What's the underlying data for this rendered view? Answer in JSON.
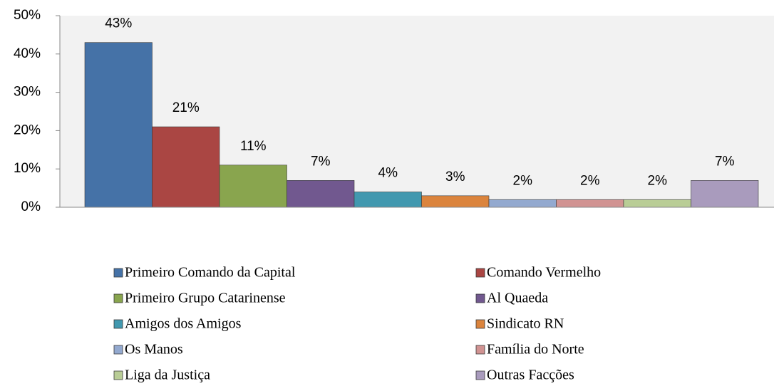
{
  "chart_data": {
    "type": "bar",
    "ylim": [
      0,
      50
    ],
    "yticks": [
      {
        "value": 0,
        "label": "0%"
      },
      {
        "value": 10,
        "label": "10%"
      },
      {
        "value": 20,
        "label": "20%"
      },
      {
        "value": 30,
        "label": "30%"
      },
      {
        "value": 40,
        "label": "40%"
      },
      {
        "value": 50,
        "label": "50%"
      }
    ],
    "series": [
      {
        "name": "Primeiro Comando da Capital",
        "color": "#4572a7",
        "values": [
          43
        ],
        "value_labels": [
          "43%"
        ]
      },
      {
        "name": "Comando Vermelho",
        "color": "#aa4643",
        "values": [
          21
        ],
        "value_labels": [
          "21%"
        ]
      },
      {
        "name": "Primeiro Grupo Catarinense",
        "color": "#89a54e",
        "values": [
          11
        ],
        "value_labels": [
          "11%"
        ]
      },
      {
        "name": "Al Quaeda",
        "color": "#71588f",
        "values": [
          7
        ],
        "value_labels": [
          "7%"
        ]
      },
      {
        "name": "Amigos dos Amigos",
        "color": "#4198af",
        "values": [
          4
        ],
        "value_labels": [
          "4%"
        ]
      },
      {
        "name": "Sindicato RN",
        "color": "#db843d",
        "values": [
          3
        ],
        "value_labels": [
          "3%"
        ]
      },
      {
        "name": "Os Manos",
        "color": "#93a9cf",
        "values": [
          2
        ],
        "value_labels": [
          "2%"
        ]
      },
      {
        "name": "Família do Norte",
        "color": "#d19392",
        "values": [
          2
        ],
        "value_labels": [
          "2%"
        ]
      },
      {
        "name": "Liga da Justiça",
        "color": "#b9cd96",
        "values": [
          2
        ],
        "value_labels": [
          "2%"
        ]
      },
      {
        "name": "Outras Facções",
        "color": "#a99bbd",
        "values": [
          7
        ],
        "value_labels": [
          "7%"
        ]
      }
    ]
  }
}
